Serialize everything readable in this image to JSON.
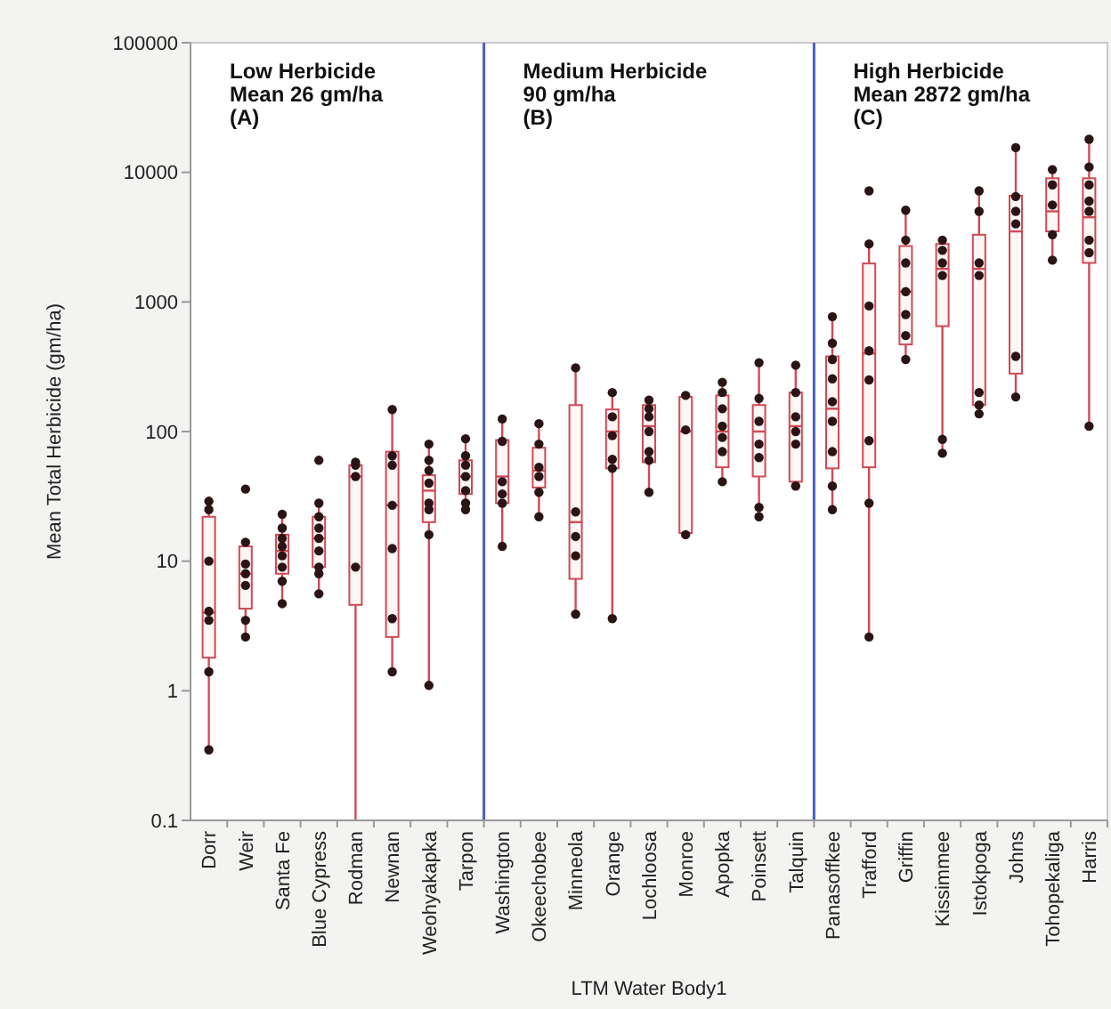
{
  "chart_data": {
    "type": "box",
    "xlabel": "LTM Water Body1",
    "ylabel": "Mean Total Herbicide (gm/ha)",
    "log": true,
    "ylim": [
      0.1,
      100000
    ],
    "yticks": [
      0.1,
      1,
      10,
      100,
      1000,
      10000,
      100000
    ],
    "grid": false,
    "color": "#d04a55",
    "categories": [
      "Dorr",
      "Weir",
      "Santa Fe",
      "Blue Cypress",
      "Rodman",
      "Newnan",
      "Weohyakapka",
      "Tarpon",
      "Washington",
      "Okeechobee",
      "Minneola",
      "Orange",
      "Lochloosa",
      "Monroe",
      "Apopka",
      "Poinsett",
      "Talquin",
      "Panasoffkee",
      "Trafford",
      "Griffin",
      "Kissimmee",
      "Istokpoga",
      "Johns",
      "Tohopekaliga",
      "Harris"
    ],
    "boxes": [
      {
        "low": 0.35,
        "q1": 1.8,
        "median": 4,
        "q3": 22,
        "high": 29
      },
      {
        "low": 2.6,
        "q1": 4.3,
        "median": 8,
        "q3": 13,
        "high": 14,
        "outliers": [
          36
        ]
      },
      {
        "low": 4.7,
        "q1": 8,
        "median": 12,
        "q3": 16,
        "high": 23
      },
      {
        "low": 5.6,
        "q1": 9,
        "median": 15,
        "q3": 22,
        "high": 28,
        "outliers": [
          60
        ]
      },
      {
        "low": 0.1,
        "q1": 4.6,
        "median": 45,
        "q3": 55,
        "high": 58
      },
      {
        "low": 1.4,
        "q1": 2.6,
        "median": 27,
        "q3": 70,
        "high": 148
      },
      {
        "low": 1.1,
        "q1": 20,
        "median": 35,
        "q3": 46,
        "high": 80
      },
      {
        "low": 25,
        "q1": 33,
        "median": 45,
        "q3": 60,
        "high": 88
      },
      {
        "low": 13,
        "q1": 28,
        "median": 45,
        "q3": 86,
        "high": 125
      },
      {
        "low": 22,
        "q1": 37,
        "median": 50,
        "q3": 75,
        "high": 115
      },
      {
        "low": 3.9,
        "q1": 7.3,
        "median": 20,
        "q3": 160,
        "high": 310
      },
      {
        "low": 3.6,
        "q1": 52,
        "median": 100,
        "q3": 148,
        "high": 200
      },
      {
        "low": 34,
        "q1": 58,
        "median": 110,
        "q3": 160,
        "high": 175
      },
      {
        "low": 16,
        "q1": 16.5,
        "median": 100,
        "q3": 185,
        "high": 190
      },
      {
        "low": 41,
        "q1": 53,
        "median": 100,
        "q3": 190,
        "high": 240
      },
      {
        "low": 22,
        "q1": 45,
        "median": 100,
        "q3": 160,
        "high": 340
      },
      {
        "low": 38,
        "q1": 41,
        "median": 110,
        "q3": 200,
        "high": 325
      },
      {
        "low": 25,
        "q1": 52,
        "median": 150,
        "q3": 380,
        "high": 770
      },
      {
        "low": 2.6,
        "q1": 53,
        "median": 400,
        "q3": 1980,
        "high": 2800,
        "outliers": [
          7200
        ]
      },
      {
        "low": 360,
        "q1": 470,
        "median": 1200,
        "q3": 2700,
        "high": 5100
      },
      {
        "low": 68,
        "q1": 650,
        "median": 1800,
        "q3": 2800,
        "high": 3000
      },
      {
        "low": 137,
        "q1": 160,
        "median": 1800,
        "q3": 3300,
        "high": 7200
      },
      {
        "low": 185,
        "q1": 280,
        "median": 3500,
        "q3": 6600,
        "high": 15500
      },
      {
        "low": 2100,
        "q1": 3500,
        "median": 5000,
        "q3": 9000,
        "high": 10500
      },
      {
        "low": 110,
        "q1": 2000,
        "median": 4500,
        "q3": 9000,
        "high": 18000
      }
    ],
    "series": [
      {
        "type": "scatter",
        "color": "#2a1416",
        "marker": "circle",
        "x": [
          "Dorr",
          "Dorr",
          "Dorr",
          "Dorr",
          "Dorr",
          "Dorr",
          "Dorr",
          "Weir",
          "Weir",
          "Weir",
          "Weir",
          "Weir",
          "Weir",
          "Santa Fe",
          "Santa Fe",
          "Santa Fe",
          "Santa Fe",
          "Santa Fe",
          "Santa Fe",
          "Santa Fe",
          "Santa Fe",
          "Blue Cypress",
          "Blue Cypress",
          "Blue Cypress",
          "Blue Cypress",
          "Blue Cypress",
          "Blue Cypress",
          "Blue Cypress",
          "Blue Cypress",
          "Rodman",
          "Rodman",
          "Rodman",
          "Rodman",
          "Newnan",
          "Newnan",
          "Newnan",
          "Newnan",
          "Newnan",
          "Newnan",
          "Newnan",
          "Weohyakapka",
          "Weohyakapka",
          "Weohyakapka",
          "Weohyakapka",
          "Weohyakapka",
          "Weohyakapka",
          "Weohyakapka",
          "Weohyakapka",
          "Tarpon",
          "Tarpon",
          "Tarpon",
          "Tarpon",
          "Tarpon",
          "Tarpon",
          "Tarpon",
          "Washington",
          "Washington",
          "Washington",
          "Washington",
          "Washington",
          "Washington",
          "Okeechobee",
          "Okeechobee",
          "Okeechobee",
          "Okeechobee",
          "Okeechobee",
          "Okeechobee",
          "Minneola",
          "Minneola",
          "Minneola",
          "Minneola",
          "Minneola",
          "Orange",
          "Orange",
          "Orange",
          "Orange",
          "Orange",
          "Orange",
          "Lochloosa",
          "Lochloosa",
          "Lochloosa",
          "Lochloosa",
          "Lochloosa",
          "Lochloosa",
          "Lochloosa",
          "Monroe",
          "Monroe",
          "Monroe",
          "Apopka",
          "Apopka",
          "Apopka",
          "Apopka",
          "Apopka",
          "Apopka",
          "Apopka",
          "Poinsett",
          "Poinsett",
          "Poinsett",
          "Poinsett",
          "Poinsett",
          "Poinsett",
          "Poinsett",
          "Talquin",
          "Talquin",
          "Talquin",
          "Talquin",
          "Talquin",
          "Talquin",
          "Panasoffkee",
          "Panasoffkee",
          "Panasoffkee",
          "Panasoffkee",
          "Panasoffkee",
          "Panasoffkee",
          "Panasoffkee",
          "Panasoffkee",
          "Panasoffkee",
          "Trafford",
          "Trafford",
          "Trafford",
          "Trafford",
          "Trafford",
          "Trafford",
          "Trafford",
          "Griffin",
          "Griffin",
          "Griffin",
          "Griffin",
          "Griffin",
          "Griffin",
          "Griffin",
          "Kissimmee",
          "Kissimmee",
          "Kissimmee",
          "Kissimmee",
          "Kissimmee",
          "Kissimmee",
          "Istokpoga",
          "Istokpoga",
          "Istokpoga",
          "Istokpoga",
          "Istokpoga",
          "Istokpoga",
          "Istokpoga",
          "Johns",
          "Johns",
          "Johns",
          "Johns",
          "Johns",
          "Johns",
          "Tohopekaliga",
          "Tohopekaliga",
          "Tohopekaliga",
          "Tohopekaliga",
          "Tohopekaliga",
          "Harris",
          "Harris",
          "Harris",
          "Harris",
          "Harris",
          "Harris",
          "Harris",
          "Harris"
        ],
        "values": [
          29,
          25,
          10,
          4.1,
          3.5,
          1.4,
          0.35,
          14,
          9.5,
          8,
          6.5,
          3.5,
          2.6,
          23,
          18,
          15,
          13,
          11,
          9,
          7,
          4.7,
          28,
          22,
          18,
          15,
          12,
          9,
          8,
          5.6,
          58,
          55,
          45,
          9,
          148,
          65,
          55,
          27,
          12.5,
          3.6,
          1.4,
          80,
          60,
          50,
          40,
          28,
          25,
          16,
          1.1,
          88,
          65,
          55,
          45,
          35,
          28,
          25,
          125,
          84,
          41,
          33,
          28,
          13,
          115,
          80,
          53,
          45,
          34,
          22,
          310,
          24,
          15.5,
          11,
          3.9,
          200,
          130,
          93,
          61,
          52,
          3.6,
          175,
          150,
          130,
          100,
          70,
          60,
          34,
          190,
          103,
          16,
          240,
          200,
          150,
          110,
          90,
          70,
          41,
          340,
          180,
          120,
          80,
          63,
          26,
          22,
          325,
          200,
          130,
          100,
          80,
          38,
          770,
          480,
          360,
          255,
          170,
          120,
          70,
          38,
          25,
          2800,
          930,
          420,
          250,
          85,
          28,
          2.6,
          5100,
          3000,
          2000,
          1200,
          800,
          550,
          360,
          3000,
          2500,
          2000,
          1600,
          87,
          68,
          7200,
          5000,
          2000,
          1600,
          200,
          160,
          137,
          15500,
          6500,
          5000,
          4000,
          380,
          185,
          10500,
          8000,
          5600,
          3300,
          2100,
          18000,
          11000,
          8000,
          6000,
          5000,
          3000,
          2400,
          110
        ]
      }
    ],
    "annotations": [
      "Low Herbicide\nMean 26 gm/ha\n(A)",
      "Medium Herbicide\n90 gm/ha\n(B)",
      "High Herbicide\nMean 2872 gm/ha\n(C)"
    ]
  }
}
